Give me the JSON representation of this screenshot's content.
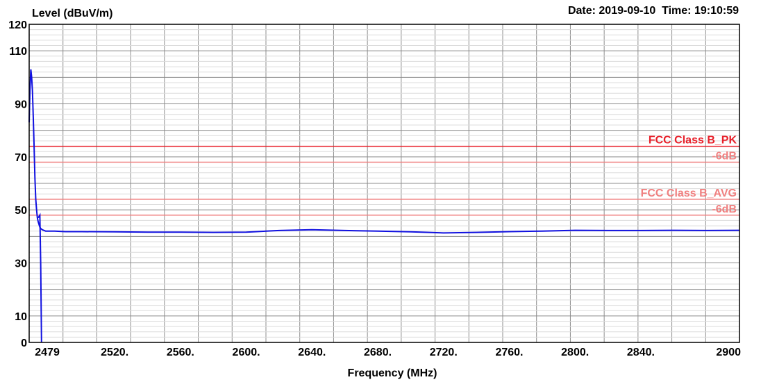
{
  "header": {
    "date_time": "Date: 2019-09-10  Time: 19:10:59"
  },
  "chart_data": {
    "type": "line",
    "ylabel": "Level (dBuV/m)",
    "xlabel": "Frequency (MHz)",
    "xlim": [
      2468,
      2900
    ],
    "ylim": [
      0,
      120
    ],
    "x_ticks": [
      {
        "value": 2479,
        "label": "2479"
      },
      {
        "value": 2520,
        "label": "2520."
      },
      {
        "value": 2560,
        "label": "2560."
      },
      {
        "value": 2600,
        "label": "2600."
      },
      {
        "value": 2640,
        "label": "2640."
      },
      {
        "value": 2680,
        "label": "2680."
      },
      {
        "value": 2720,
        "label": "2720."
      },
      {
        "value": 2760,
        "label": "2760."
      },
      {
        "value": 2800,
        "label": "2800."
      },
      {
        "value": 2840,
        "label": "2840."
      },
      {
        "value": 2900,
        "label": "2900"
      }
    ],
    "y_ticks": [
      {
        "value": 0,
        "label": "0"
      },
      {
        "value": 10,
        "label": "10"
      },
      {
        "value": 30,
        "label": "30"
      },
      {
        "value": 50,
        "label": "50"
      },
      {
        "value": 70,
        "label": "70"
      },
      {
        "value": 90,
        "label": "90"
      },
      {
        "value": 110,
        "label": "110"
      },
      {
        "value": 120,
        "label": "120"
      }
    ],
    "limit_lines": [
      {
        "name": "FCC Class B_PK",
        "value": 74,
        "color": "#e8202a"
      },
      {
        "name": "-6dB",
        "value": 68,
        "color": "#f08080"
      },
      {
        "name": "FCC Class B_AVG",
        "value": 54,
        "color": "#f08080"
      },
      {
        "name": "-6dB",
        "value": 48,
        "color": "#f08080"
      }
    ],
    "series": [
      {
        "color": "#1010e0",
        "x": [
          2468.0,
          2468.5,
          2469.0,
          2469.5,
          2470.0,
          2470.5,
          2471.0,
          2471.5,
          2472.0,
          2472.5,
          2473.0,
          2473.5,
          2474.0,
          2474.5,
          2475.0,
          2476.0,
          2478.0,
          2480.0,
          2483.5,
          2490.0,
          2500.0,
          2520.0,
          2540.0,
          2560.0,
          2580.0,
          2600.0,
          2620.0,
          2640.0,
          2660.0,
          2680.0,
          2700.0,
          2720.0,
          2740.0,
          2760.0,
          2780.0,
          2800.0,
          2820.0,
          2840.0,
          2860.0,
          2880.0,
          2900.0
        ],
        "y": [
          83,
          96,
          103,
          100,
          95,
          85,
          74,
          62,
          54,
          50,
          47,
          45.5,
          44.5,
          43.5,
          43,
          42.5,
          42,
          42,
          42,
          41.8,
          41.8,
          41.7,
          41.6,
          41.6,
          41.5,
          41.6,
          42.2,
          42.5,
          42.2,
          42,
          41.7,
          41.3,
          41.5,
          41.8,
          42,
          42.3,
          42.2,
          42.2,
          42.3,
          42.2,
          42.3
        ]
      },
      {
        "color": "#1010e0",
        "x": [
          2473.5,
          2474.5,
          2475.0,
          2475.5
        ],
        "y": [
          47,
          48,
          30,
          0
        ]
      }
    ]
  }
}
